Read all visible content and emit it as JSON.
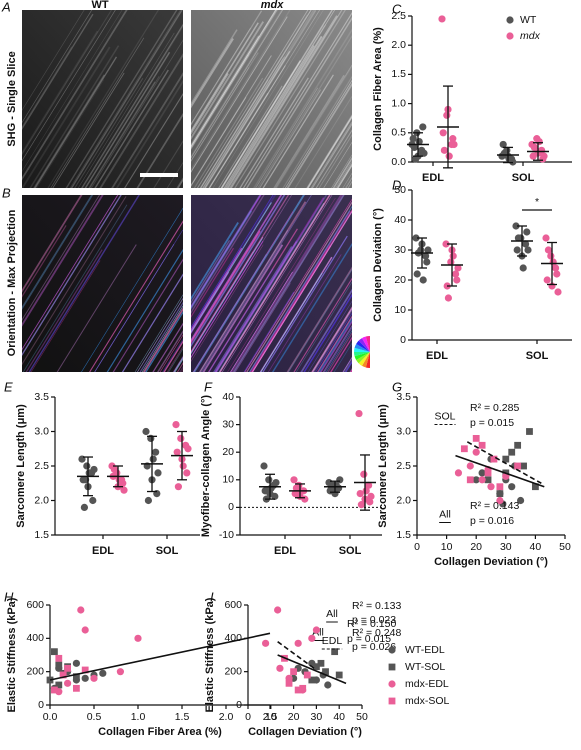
{
  "images": {
    "columns": [
      "WT",
      "mdx"
    ],
    "rows": [
      {
        "label": "A",
        "title": "SHG - Single Slice"
      },
      {
        "label": "B",
        "title": "Orientation - Max Projection"
      }
    ]
  },
  "chart_data": [
    {
      "type": "dot",
      "label": "C",
      "ylabel": "Collagen Fiber Area (%)",
      "categories": [
        "EDL",
        "SOL"
      ],
      "ylim": [
        0,
        2.5
      ],
      "yticks": [
        {
          "value": 0,
          "label": "0.0"
        },
        0.5,
        {
          "value": 1,
          "label": "1.0"
        },
        1.5,
        {
          "value": 2,
          "label": "2.0"
        },
        2.5
      ],
      "legend": "upper right",
      "series": [
        {
          "name": "WT",
          "color": "#555555",
          "values": [
            [
              0.3,
              0.5,
              0.2,
              0.4,
              0.1,
              0.6,
              0.25,
              0.35,
              0.15,
              0.05
            ],
            [
              0.1,
              0.2,
              0.05,
              0.3,
              0.1,
              0.0,
              0.15,
              0.05
            ]
          ],
          "mean": [
            0.3,
            0.12
          ],
          "sd": [
            0.2,
            0.13
          ]
        },
        {
          "name": "mdx",
          "color": "#ea5f97",
          "values": [
            [
              2.45,
              0.8,
              0.3,
              0.5,
              0.9,
              0.4,
              0.2,
              0.1,
              0.3
            ],
            [
              0.3,
              0.4,
              0.2,
              0.1,
              0.15,
              0.05,
              0.25,
              0.35,
              0.1
            ]
          ],
          "mean": [
            0.6,
            0.18
          ],
          "sd": [
            0.7,
            0.15
          ]
        }
      ]
    },
    {
      "type": "dot",
      "label": "D",
      "ylabel": "Collagen Deviation (°)",
      "categories": [
        "EDL",
        "SOL"
      ],
      "ylim": [
        0,
        50
      ],
      "yticks": [
        0,
        10,
        20,
        30,
        40,
        50
      ],
      "annotation": "*",
      "series": [
        {
          "name": "WT",
          "color": "#555555",
          "values": [
            [
              34,
              30,
              28,
              22,
              32,
              26,
              29,
              20,
              30
            ],
            [
              38,
              34,
              32,
              30,
              28,
              36,
              34,
              24,
              30
            ]
          ],
          "mean": [
            29,
            33
          ],
          "sd": [
            5,
            5
          ]
        },
        {
          "name": "mdx",
          "color": "#ea5f97",
          "values": [
            [
              32,
              26,
              22,
              18,
              30,
              20,
              14,
              28,
              24
            ],
            [
              34,
              28,
              24,
              20,
              18,
              22,
              30,
              26,
              16
            ]
          ],
          "mean": [
            25,
            25.5
          ],
          "sd": [
            7,
            7
          ]
        }
      ]
    },
    {
      "type": "dot",
      "label": "E",
      "ylabel": "Sarcomere Length (μm)",
      "categories": [
        "EDL",
        "SOL"
      ],
      "ylim": [
        1.5,
        3.5
      ],
      "yticks": [
        1.5,
        {
          "value": 2,
          "label": "2.0"
        },
        2.5,
        {
          "value": 3,
          "label": "3.0"
        },
        3.5
      ],
      "series": [
        {
          "name": "WT",
          "color": "#555555",
          "values": [
            [
              2.6,
              2.5,
              2.4,
              2.3,
              2.2,
              2.0,
              1.9,
              2.4,
              2.45,
              2.3
            ],
            [
              3.0,
              2.9,
              2.7,
              2.5,
              2.3,
              2.1,
              2.0,
              2.6,
              2.4
            ]
          ],
          "mean": [
            2.35,
            2.53
          ],
          "sd": [
            0.28,
            0.4
          ]
        },
        {
          "name": "mdx",
          "color": "#ea5f97",
          "values": [
            [
              2.5,
              2.4,
              2.3,
              2.35,
              2.2,
              2.25,
              2.45,
              2.3,
              2.15
            ],
            [
              3.1,
              2.9,
              2.8,
              2.7,
              2.6,
              2.4,
              2.2,
              2.5,
              2.75
            ]
          ],
          "mean": [
            2.35,
            2.65
          ],
          "sd": [
            0.15,
            0.35
          ]
        }
      ]
    },
    {
      "type": "dot",
      "label": "F",
      "ylabel": "Myofiber-collagen Angle (°)",
      "categories": [
        "EDL",
        "SOL"
      ],
      "ylim": [
        -10,
        40
      ],
      "yticks": [
        -10,
        0,
        10,
        20,
        30,
        40
      ],
      "reference_line": 0,
      "series": [
        {
          "name": "WT",
          "color": "#555555",
          "values": [
            [
              15,
              10,
              8,
              6,
              5,
              4,
              3,
              7,
              9,
              6
            ],
            [
              9,
              8,
              7,
              6,
              5,
              10,
              7,
              8
            ]
          ],
          "mean": [
            7.5,
            7.5
          ],
          "sd": [
            4.5,
            2
          ]
        },
        {
          "name": "mdx",
          "color": "#ea5f97",
          "values": [
            [
              10,
              8,
              6,
              5,
              4,
              3,
              7,
              6
            ],
            [
              34,
              12,
              8,
              5,
              3,
              2,
              1,
              6,
              4
            ]
          ],
          "mean": [
            6,
            9
          ],
          "sd": [
            2.5,
            10
          ]
        }
      ]
    },
    {
      "type": "scatter",
      "label": "G",
      "xlabel": "Collagen  Deviation  (°)",
      "ylabel": "Sarcomere Length (μm)",
      "xlim": [
        0,
        50
      ],
      "xticks": [
        0,
        10,
        20,
        30,
        40,
        50
      ],
      "ylim": [
        1.5,
        3.5
      ],
      "yticks": [
        1.5,
        {
          "value": 2,
          "label": "2.0"
        },
        2.5,
        {
          "value": 3,
          "label": "3.0"
        },
        3.5
      ],
      "series": [
        {
          "name": "WT-EDL",
          "color": "#555555",
          "marker": "circle",
          "x": [
            25,
            30,
            33,
            28,
            22,
            35,
            29,
            32,
            20
          ],
          "y": [
            2.6,
            2.3,
            2.5,
            2.1,
            2.4,
            2.0,
            1.95,
            2.2,
            2.3
          ]
        },
        {
          "name": "WT-SOL",
          "color": "#555555",
          "marker": "square",
          "x": [
            38,
            34,
            32,
            36,
            30,
            28,
            24,
            30,
            40
          ],
          "y": [
            3.0,
            2.8,
            2.7,
            2.5,
            2.4,
            2.1,
            2.3,
            2.6,
            2.2
          ]
        },
        {
          "name": "mdx-EDL",
          "color": "#ea5f97",
          "marker": "circle",
          "x": [
            20,
            18,
            14,
            22,
            25,
            28,
            30,
            24
          ],
          "y": [
            2.7,
            2.5,
            2.4,
            2.3,
            2.2,
            2.0,
            2.35,
            2.45
          ]
        },
        {
          "name": "mdx-SOL",
          "color": "#ea5f97",
          "marker": "square",
          "x": [
            16,
            20,
            22,
            26,
            34,
            18,
            24,
            28
          ],
          "y": [
            2.75,
            2.9,
            2.8,
            2.6,
            2.5,
            2.3,
            2.4,
            2.2
          ]
        }
      ],
      "fits": [
        {
          "name": "SOL",
          "dashed": true,
          "x": [
            17,
            42
          ],
          "y": [
            2.85,
            2.25
          ],
          "r2": "R² = 0.285",
          "p": "p = 0.015"
        },
        {
          "name": "All",
          "dashed": false,
          "x": [
            13,
            43
          ],
          "y": [
            2.65,
            2.2
          ],
          "r2": "R² = 0.143",
          "p": "p = 0.016"
        }
      ]
    },
    {
      "type": "scatter",
      "label": "H",
      "xlabel": "Collagen Fiber Area  (%)",
      "ylabel": "Elastic Stiffness (kPa)",
      "xlim": [
        0,
        2.5
      ],
      "xticks": [
        {
          "value": 0,
          "label": "0.0"
        },
        0.5,
        {
          "value": 1,
          "label": "1.0"
        },
        1.5,
        {
          "value": 2,
          "label": "2.0"
        },
        2.5
      ],
      "ylim": [
        0,
        600
      ],
      "yticks": [
        0,
        200,
        400,
        600
      ],
      "series": [
        {
          "name": "WT-EDL",
          "color": "#555555",
          "marker": "circle",
          "x": [
            0.2,
            0.3,
            0.5,
            0.1,
            0.4,
            0.6,
            0.05,
            0.3
          ],
          "y": [
            200,
            150,
            180,
            220,
            160,
            190,
            100,
            250
          ]
        },
        {
          "name": "WT-SOL",
          "color": "#555555",
          "marker": "square",
          "x": [
            0.05,
            0.1,
            0.2,
            0.15,
            0.0,
            0.3,
            0.1
          ],
          "y": [
            320,
            240,
            230,
            190,
            150,
            170,
            120
          ]
        },
        {
          "name": "mdx-EDL",
          "color": "#ea5f97",
          "marker": "circle",
          "x": [
            0.35,
            0.4,
            1.0,
            2.45,
            0.8,
            0.5,
            0.1,
            0.2
          ],
          "y": [
            570,
            450,
            400,
            370,
            200,
            160,
            80,
            130
          ]
        },
        {
          "name": "mdx-SOL",
          "color": "#ea5f97",
          "marker": "square",
          "x": [
            0.1,
            0.2,
            0.3,
            0.05,
            0.15,
            0.4
          ],
          "y": [
            280,
            220,
            100,
            90,
            180,
            210
          ]
        }
      ],
      "fits": [
        {
          "name": "All",
          "dashed": false,
          "x": [
            0,
            2.5
          ],
          "y": [
            150,
            430
          ],
          "r2": "R² = 0.150",
          "p": "p = 0.015"
        }
      ]
    },
    {
      "type": "scatter",
      "label": "I",
      "xlabel": "Collagen  Deviation  (°)",
      "ylabel": "Elastic Stiffness (kPa)",
      "xlim": [
        0,
        50
      ],
      "xticks": [
        0,
        10,
        20,
        30,
        40,
        50
      ],
      "ylim": [
        0,
        600
      ],
      "yticks": [
        0,
        200,
        400,
        600
      ],
      "legend": "right",
      "series": [
        {
          "name": "WT-EDL",
          "color": "#555555",
          "marker": "circle",
          "x": [
            25,
            30,
            28,
            33,
            22,
            35,
            20
          ],
          "y": [
            200,
            150,
            250,
            180,
            220,
            120,
            160
          ]
        },
        {
          "name": "WT-SOL",
          "color": "#555555",
          "marker": "square",
          "x": [
            38,
            34,
            32,
            40,
            30,
            28
          ],
          "y": [
            320,
            200,
            250,
            180,
            230,
            150
          ]
        },
        {
          "name": "mdx-EDL",
          "color": "#ea5f97",
          "marker": "circle",
          "x": [
            13,
            30,
            28,
            22,
            18,
            24,
            14
          ],
          "y": [
            570,
            450,
            400,
            370,
            160,
            90,
            220
          ]
        },
        {
          "name": "mdx-SOL",
          "color": "#ea5f97",
          "marker": "square",
          "x": [
            16,
            20,
            24,
            18,
            26,
            22
          ],
          "y": [
            280,
            200,
            100,
            130,
            180,
            90
          ]
        }
      ],
      "fits": [
        {
          "name": "All",
          "dashed": false,
          "x": [
            13,
            43
          ],
          "y": [
            300,
            130
          ],
          "r2": "R² = 0.133",
          "p": "p = 0.023"
        },
        {
          "name": "EDL",
          "dashed": true,
          "x": [
            13,
            30
          ],
          "y": [
            380,
            210
          ],
          "r2": "R² = 0.248",
          "p": "p = 0.026"
        }
      ]
    }
  ]
}
